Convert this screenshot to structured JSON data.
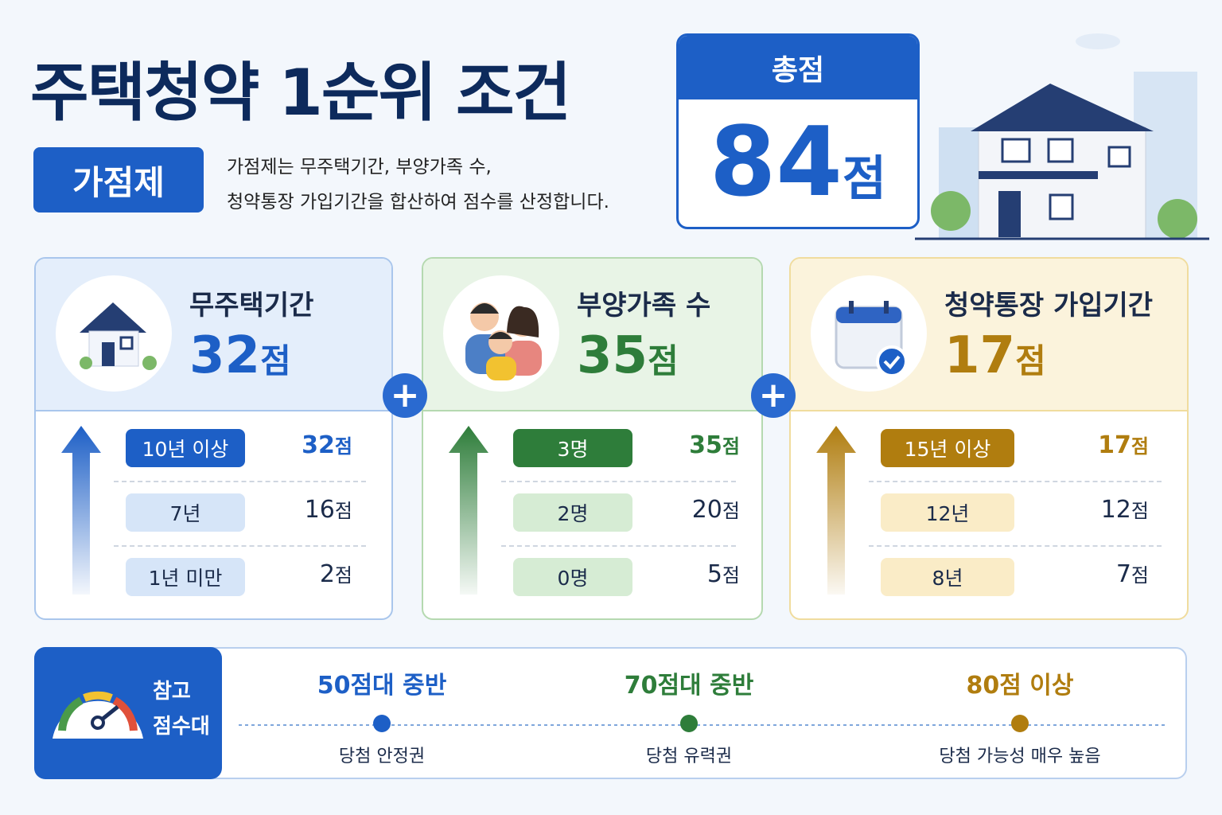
{
  "header": {
    "title": "주택청약 1순위 조건",
    "badge": "가점제",
    "description": [
      "가점제는 무주택기간, 부양가족 수,",
      "청약통장 가입기간을 합산하여 점수를 산정합니다."
    ]
  },
  "total": {
    "label": "총점",
    "number": "84",
    "unit": "점"
  },
  "cards": [
    {
      "title": "무주택기간",
      "score": "32",
      "unit": "점",
      "rows": [
        {
          "label": "10년 이상",
          "points": "32",
          "unit": "점"
        },
        {
          "label": "7년",
          "points": "16",
          "unit": "점"
        },
        {
          "label": "1년 미만",
          "points": "2",
          "unit": "점"
        }
      ]
    },
    {
      "title": "부양가족 수",
      "score": "35",
      "unit": "점",
      "rows": [
        {
          "label": "3명",
          "points": "35",
          "unit": "점"
        },
        {
          "label": "2명",
          "points": "20",
          "unit": "점"
        },
        {
          "label": "0명",
          "points": "5",
          "unit": "점"
        }
      ]
    },
    {
      "title": "청약통장 가입기간",
      "score": "17",
      "unit": "점",
      "rows": [
        {
          "label": "15년 이상",
          "points": "17",
          "unit": "점"
        },
        {
          "label": "12년",
          "points": "12",
          "unit": "점"
        },
        {
          "label": "8년",
          "points": "7",
          "unit": "점"
        }
      ]
    }
  ],
  "reference": {
    "label": [
      "참고",
      "점수대"
    ],
    "items": [
      {
        "score": "50점대 중반",
        "note": "당첨 안정권"
      },
      {
        "score": "70점대 중반",
        "note": "당첨 유력권"
      },
      {
        "score": "80점 이상",
        "note": "당첨 가능성 매우 높음"
      }
    ]
  }
}
